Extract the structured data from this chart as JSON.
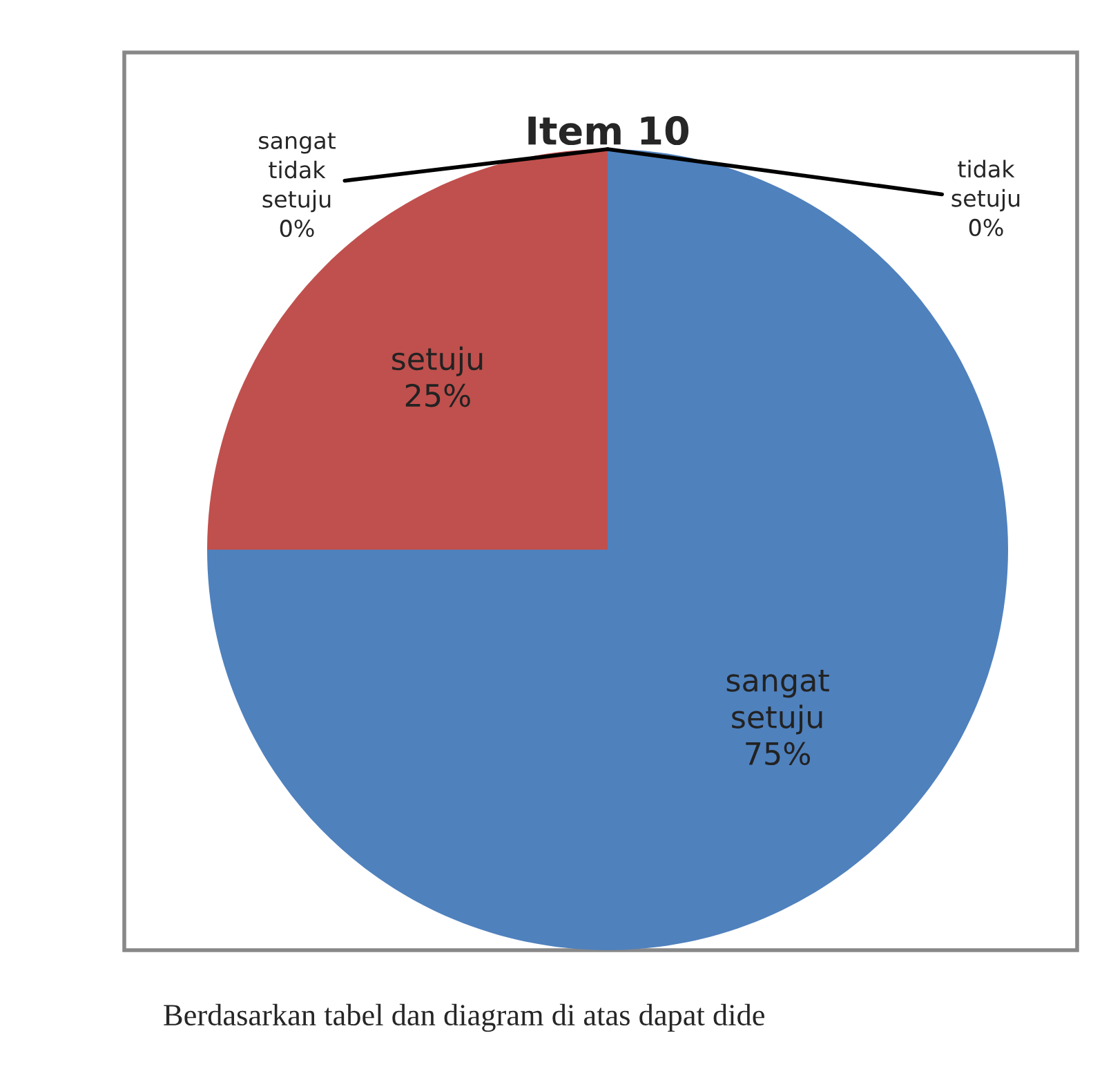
{
  "chart_data": {
    "type": "pie",
    "title": "Item 10",
    "categories": [
      "sangat setuju",
      "setuju",
      "sangat tidak setuju",
      "tidak setuju"
    ],
    "values": [
      75,
      25,
      0,
      0
    ],
    "colors": [
      "#4f81bd",
      "#c0504d",
      "#9bbb59",
      "#8064a2"
    ],
    "value_labels": [
      "75%",
      "25%",
      "0%",
      "0%"
    ],
    "annotations": [
      "Berdasarkan tabel dan diagram di atas dapat dide"
    ]
  }
}
